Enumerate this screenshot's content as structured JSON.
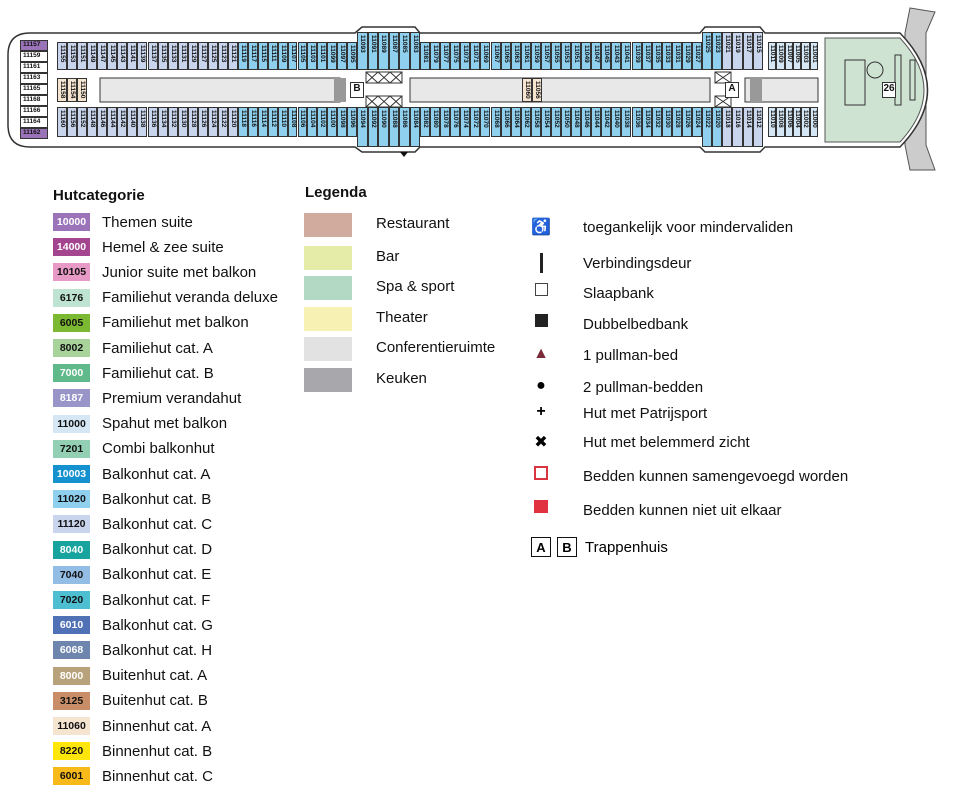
{
  "deck": {
    "stair_a": "A",
    "stair_b": "B",
    "bow_label": "26",
    "stern_stack": {
      "category": "10000",
      "cabins": [
        "11157",
        "11159",
        "11161",
        "11163",
        "11165",
        "11168",
        "11166",
        "11164",
        "11162"
      ]
    },
    "top_groups": [
      {
        "category": "11120",
        "cabins": [
          "11155",
          "11153",
          "11151",
          "11149",
          "11147",
          "11145",
          "11143",
          "11141",
          "11139",
          "11137",
          "11135",
          "11133",
          "11131",
          "11129",
          "11127",
          "11125",
          "11123",
          "11121"
        ]
      },
      {
        "category": "11020",
        "cabins": [
          "11119",
          "11117",
          "11115",
          "11111",
          "11109",
          "11107",
          "11105",
          "11103",
          "11101",
          "11099",
          "11097",
          "11095"
        ]
      },
      {
        "category": "11020",
        "raised": true,
        "cabins": [
          "11093",
          "11091",
          "11089",
          "11087",
          "11085",
          "11083"
        ]
      },
      {
        "category": "11020",
        "cabins": [
          "11081",
          "11079",
          "11077",
          "11075",
          "11073",
          "11071",
          "11069",
          "11067",
          "11065",
          "11063",
          "11061",
          "11059",
          "11057",
          "11055",
          "11053",
          "11051",
          "11049",
          "11047",
          "11045",
          "11043",
          "11041",
          "11039",
          "11037",
          "11035",
          "11033",
          "11031",
          "11029",
          "11027"
        ]
      },
      {
        "category": "11020",
        "raised": true,
        "cabins": [
          "11025",
          "11023"
        ]
      },
      {
        "category": "11120",
        "raised": true,
        "cabins": [
          "11021",
          "11019",
          "11017",
          "11015"
        ]
      },
      {
        "category": "11000",
        "cabins": [
          "11011",
          "11009",
          "11007",
          "11005",
          "11003",
          "11001"
        ]
      }
    ],
    "bottom_groups": [
      {
        "category": "11120",
        "cabins": [
          "11160",
          "11156",
          "11152",
          "11148",
          "11146",
          "11144",
          "11142",
          "11140",
          "11138",
          "11136",
          "11134",
          "11132",
          "11130",
          "11128",
          "11126",
          "11124",
          "11122",
          "11120"
        ]
      },
      {
        "category": "11020",
        "cabins": [
          "11118",
          "11116",
          "11114",
          "11112",
          "11110",
          "11108",
          "11106",
          "11104",
          "11102",
          "11100",
          "11098",
          "11096"
        ]
      },
      {
        "category": "11020",
        "raised": true,
        "cabins": [
          "11094",
          "11092",
          "11090",
          "11088",
          "11086",
          "11084"
        ]
      },
      {
        "category": "11020",
        "cabins": [
          "11082",
          "11080",
          "11078",
          "11076",
          "11074",
          "11072",
          "11070",
          "11068",
          "11066",
          "11064",
          "11062",
          "11058",
          "11054",
          "11052",
          "11050",
          "11048",
          "11046",
          "11044",
          "11042",
          "11040",
          "11038",
          "11036",
          "11034",
          "11032",
          "11030",
          "11028",
          "11026",
          "11024"
        ]
      },
      {
        "category": "11020",
        "raised": true,
        "cabins": [
          "11022",
          "11020"
        ]
      },
      {
        "category": "11120",
        "raised": true,
        "cabins": [
          "11018",
          "11016",
          "11014",
          "11012"
        ]
      },
      {
        "category": "11000",
        "cabins": [
          "11010",
          "11008",
          "11006",
          "11004",
          "11002",
          "11000"
        ]
      }
    ],
    "inner_left": {
      "category": "11060",
      "cabins": [
        "11158",
        "11154",
        "11150"
      ]
    },
    "inner_mid": {
      "category": "11060",
      "cabins": [
        "11060",
        "11056"
      ]
    }
  },
  "categories": {
    "title": "Hutcategorie",
    "items": [
      {
        "code": "10000",
        "label": "Themen suite",
        "color": "#9b73b8",
        "text": "#fff"
      },
      {
        "code": "14000",
        "label": "Hemel & zee suite",
        "color": "#a4468f",
        "text": "#fff"
      },
      {
        "code": "10105",
        "label": "Junior suite met balkon",
        "color": "#e79ac6",
        "text": "#111"
      },
      {
        "code": "6176",
        "label": "Familiehut veranda deluxe",
        "color": "#bfe3d3",
        "text": "#111"
      },
      {
        "code": "6005",
        "label": "Familiehut met balkon",
        "color": "#7cb932",
        "text": "#111"
      },
      {
        "code": "8002",
        "label": "Familiehut cat. A",
        "color": "#a8d49c",
        "text": "#111"
      },
      {
        "code": "7000",
        "label": "Familiehut cat. B",
        "color": "#5fb98a",
        "text": "#fff"
      },
      {
        "code": "8187",
        "label": "Premium verandahut",
        "color": "#9a95c9",
        "text": "#fff"
      },
      {
        "code": "11000",
        "label": "Spahut met balkon",
        "color": "#d5e7f5",
        "text": "#111"
      },
      {
        "code": "7201",
        "label": "Combi balkonhut",
        "color": "#93cfb3",
        "text": "#111"
      },
      {
        "code": "10003",
        "label": "Balkonhut cat. A",
        "color": "#1591cf",
        "text": "#fff"
      },
      {
        "code": "11020",
        "label": "Balkonhut cat. B",
        "color": "#8fd0ee",
        "text": "#111"
      },
      {
        "code": "11120",
        "label": "Balkonhut cat. C",
        "color": "#c9d5ec",
        "text": "#111"
      },
      {
        "code": "8040",
        "label": "Balkonhut cat. D",
        "color": "#18a49e",
        "text": "#fff"
      },
      {
        "code": "7040",
        "label": "Balkonhut cat. E",
        "color": "#94bde6",
        "text": "#111"
      },
      {
        "code": "7020",
        "label": "Balkonhut cat. F",
        "color": "#4dbfd1",
        "text": "#111"
      },
      {
        "code": "6010",
        "label": "Balkonhut cat. G",
        "color": "#5071b6",
        "text": "#fff"
      },
      {
        "code": "6068",
        "label": "Balkonhut cat. H",
        "color": "#6e86ad",
        "text": "#fff"
      },
      {
        "code": "8000",
        "label": "Buitenhut cat. A",
        "color": "#b8a27b",
        "text": "#fff"
      },
      {
        "code": "3125",
        "label": "Buitenhut cat. B",
        "color": "#c98e67",
        "text": "#111"
      },
      {
        "code": "11060",
        "label": "Binnenhut cat. A",
        "color": "#f4e4d0",
        "text": "#111"
      },
      {
        "code": "8220",
        "label": "Binnenhut cat. B",
        "color": "#ffe60a",
        "text": "#111"
      },
      {
        "code": "6001",
        "label": "Binnenhut cat. C",
        "color": "#f8b91a",
        "text": "#111"
      }
    ]
  },
  "legend": {
    "title": "Legenda",
    "areas": [
      {
        "label": "Restaurant",
        "color": "#d2ab9f"
      },
      {
        "label": "Bar",
        "color": "#e4eca8"
      },
      {
        "label": "Spa & sport",
        "color": "#b3d9c5"
      },
      {
        "label": "Theater",
        "color": "#f7f1b3"
      },
      {
        "label": "Conferentieruimte",
        "color": "#e2e2e2"
      },
      {
        "label": "Keuken",
        "color": "#a8a7ab"
      }
    ],
    "symbols": [
      {
        "icon": "wheelchair-icon",
        "label": "toegankelijk voor mindervaliden"
      },
      {
        "icon": "connecting-door-icon",
        "label": "Verbindingsdeur"
      },
      {
        "icon": "sofa-bed-icon",
        "label": "Slaapbank"
      },
      {
        "icon": "double-sofa-bed-icon",
        "label": "Dubbelbedbank"
      },
      {
        "icon": "pullman-triangle-icon",
        "label": "1 pullman-bed"
      },
      {
        "icon": "pullman-circle-icon",
        "label": "2 pullman-bedden"
      },
      {
        "icon": "porthole-plus-icon",
        "label": "Hut met Patrijsport"
      },
      {
        "icon": "obstructed-view-icon",
        "label": "Hut met belemmerd zicht"
      },
      {
        "icon": "beds-join-icon",
        "label": "Bedden kunnen samengevoegd worden"
      },
      {
        "icon": "beds-fixed-icon",
        "label": "Bedden kunnen niet uit elkaar"
      }
    ],
    "stair_a": "A",
    "stair_b": "B",
    "stair_label": "Trappenhuis"
  }
}
